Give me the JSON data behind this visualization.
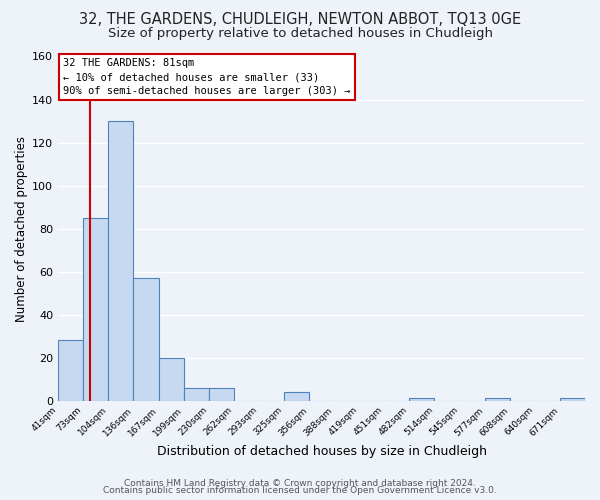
{
  "title": "32, THE GARDENS, CHUDLEIGH, NEWTON ABBOT, TQ13 0GE",
  "subtitle": "Size of property relative to detached houses in Chudleigh",
  "xlabel": "Distribution of detached houses by size in Chudleigh",
  "ylabel": "Number of detached properties",
  "bin_labels": [
    "41sqm",
    "73sqm",
    "104sqm",
    "136sqm",
    "167sqm",
    "199sqm",
    "230sqm",
    "262sqm",
    "293sqm",
    "325sqm",
    "356sqm",
    "388sqm",
    "419sqm",
    "451sqm",
    "482sqm",
    "514sqm",
    "545sqm",
    "577sqm",
    "608sqm",
    "640sqm",
    "671sqm"
  ],
  "bar_heights": [
    28,
    85,
    130,
    57,
    20,
    6,
    6,
    0,
    0,
    4,
    0,
    0,
    0,
    0,
    1,
    0,
    0,
    1,
    0,
    0,
    1
  ],
  "bar_color": "#c6d9f0",
  "bar_edge_color": "#4f81bd",
  "ylim": [
    0,
    160
  ],
  "yticks": [
    0,
    20,
    40,
    60,
    80,
    100,
    120,
    140,
    160
  ],
  "vline_color": "#cc0000",
  "annotation_title": "32 THE GARDENS: 81sqm",
  "annotation_line1": "← 10% of detached houses are smaller (33)",
  "annotation_line2": "90% of semi-detached houses are larger (303) →",
  "annotation_box_color": "#cc0000",
  "footer_line1": "Contains HM Land Registry data © Crown copyright and database right 2024.",
  "footer_line2": "Contains public sector information licensed under the Open Government Licence v3.0.",
  "background_color": "#eef2f9",
  "plot_background": "#eef2f9",
  "grid_color": "#ffffff",
  "title_fontsize": 10.5,
  "subtitle_fontsize": 9.5
}
